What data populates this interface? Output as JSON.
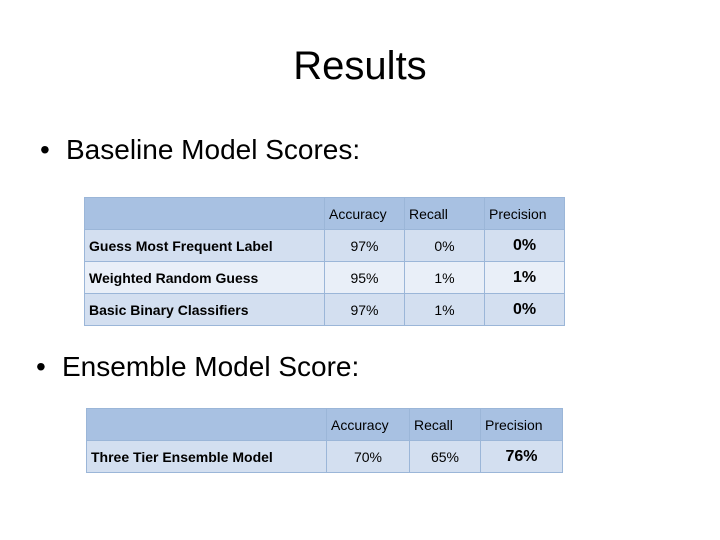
{
  "slide": {
    "title": "Results",
    "bullet1": "Baseline Model Scores:",
    "bullet2": "Ensemble Model Score:",
    "bullet_glyph": "•"
  },
  "baseline_table": {
    "headers": [
      "",
      "Accuracy",
      "Recall",
      "Precision"
    ],
    "rows": [
      {
        "label": "Guess Most Frequent Label",
        "accuracy": "97%",
        "recall": "0%",
        "precision": "0%"
      },
      {
        "label": "Weighted Random Guess",
        "accuracy": "95%",
        "recall": "1%",
        "precision": "1%"
      },
      {
        "label": "Basic Binary Classifiers",
        "accuracy": "97%",
        "recall": "1%",
        "precision": "0%"
      }
    ]
  },
  "ensemble_table": {
    "headers": [
      "",
      "Accuracy",
      "Recall",
      "Precision"
    ],
    "rows": [
      {
        "label": "Three Tier Ensemble Model",
        "accuracy": "70%",
        "recall": "65%",
        "precision": "76%"
      }
    ]
  },
  "colors": {
    "header_fill": "#a8c1e2",
    "row_fill_dark": "#d3dff0",
    "row_fill_light": "#e9eff8",
    "border": "#9bb6d8"
  }
}
